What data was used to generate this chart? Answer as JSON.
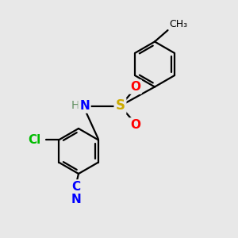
{
  "bg_color": "#e8e8e8",
  "line_color": "#000000",
  "bond_width": 1.6,
  "atom_colors": {
    "N": "#0000ff",
    "O": "#ff0000",
    "S": "#ccaa00",
    "Cl": "#00bb00",
    "C_nitrile": "#0000ff",
    "N_nitrile": "#0000ff",
    "H": "#5f8f5f"
  },
  "font_size": 11,
  "font_size_methyl": 9,
  "xlim": [
    0,
    10
  ],
  "ylim": [
    0,
    10
  ]
}
